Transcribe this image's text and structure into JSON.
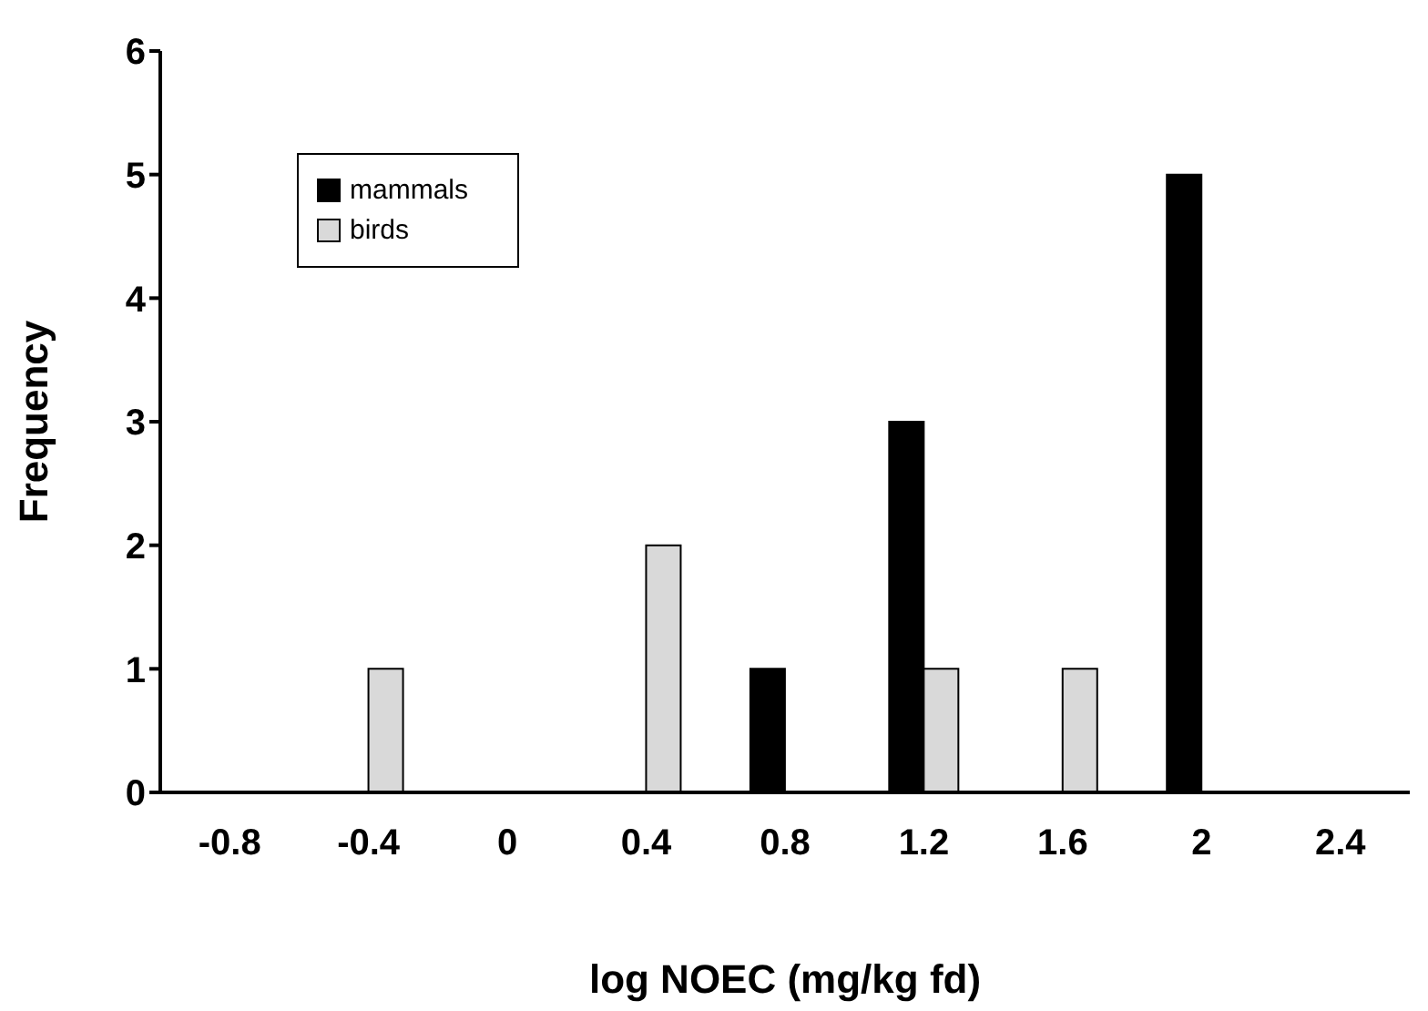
{
  "chart_data": {
    "type": "bar",
    "xlabel": "log NOEC (mg/kg fd)",
    "ylabel": "Frequency",
    "categories": [
      "-0.8",
      "-0.4",
      "0",
      "0.4",
      "0.8",
      "1.2",
      "1.6",
      "2",
      "2.4"
    ],
    "series": [
      {
        "name": "mammals",
        "color": "#000000",
        "values": [
          0,
          0,
          0,
          0,
          1,
          3,
          0,
          5,
          0
        ]
      },
      {
        "name": "birds",
        "color": "#d9d9d9",
        "values": [
          0,
          1,
          0,
          2,
          0,
          1,
          1,
          0,
          0
        ]
      }
    ],
    "ylim": [
      0,
      6
    ],
    "yticks": [
      0,
      1,
      2,
      3,
      4,
      5,
      6
    ],
    "grid": false,
    "legend": "top left"
  }
}
